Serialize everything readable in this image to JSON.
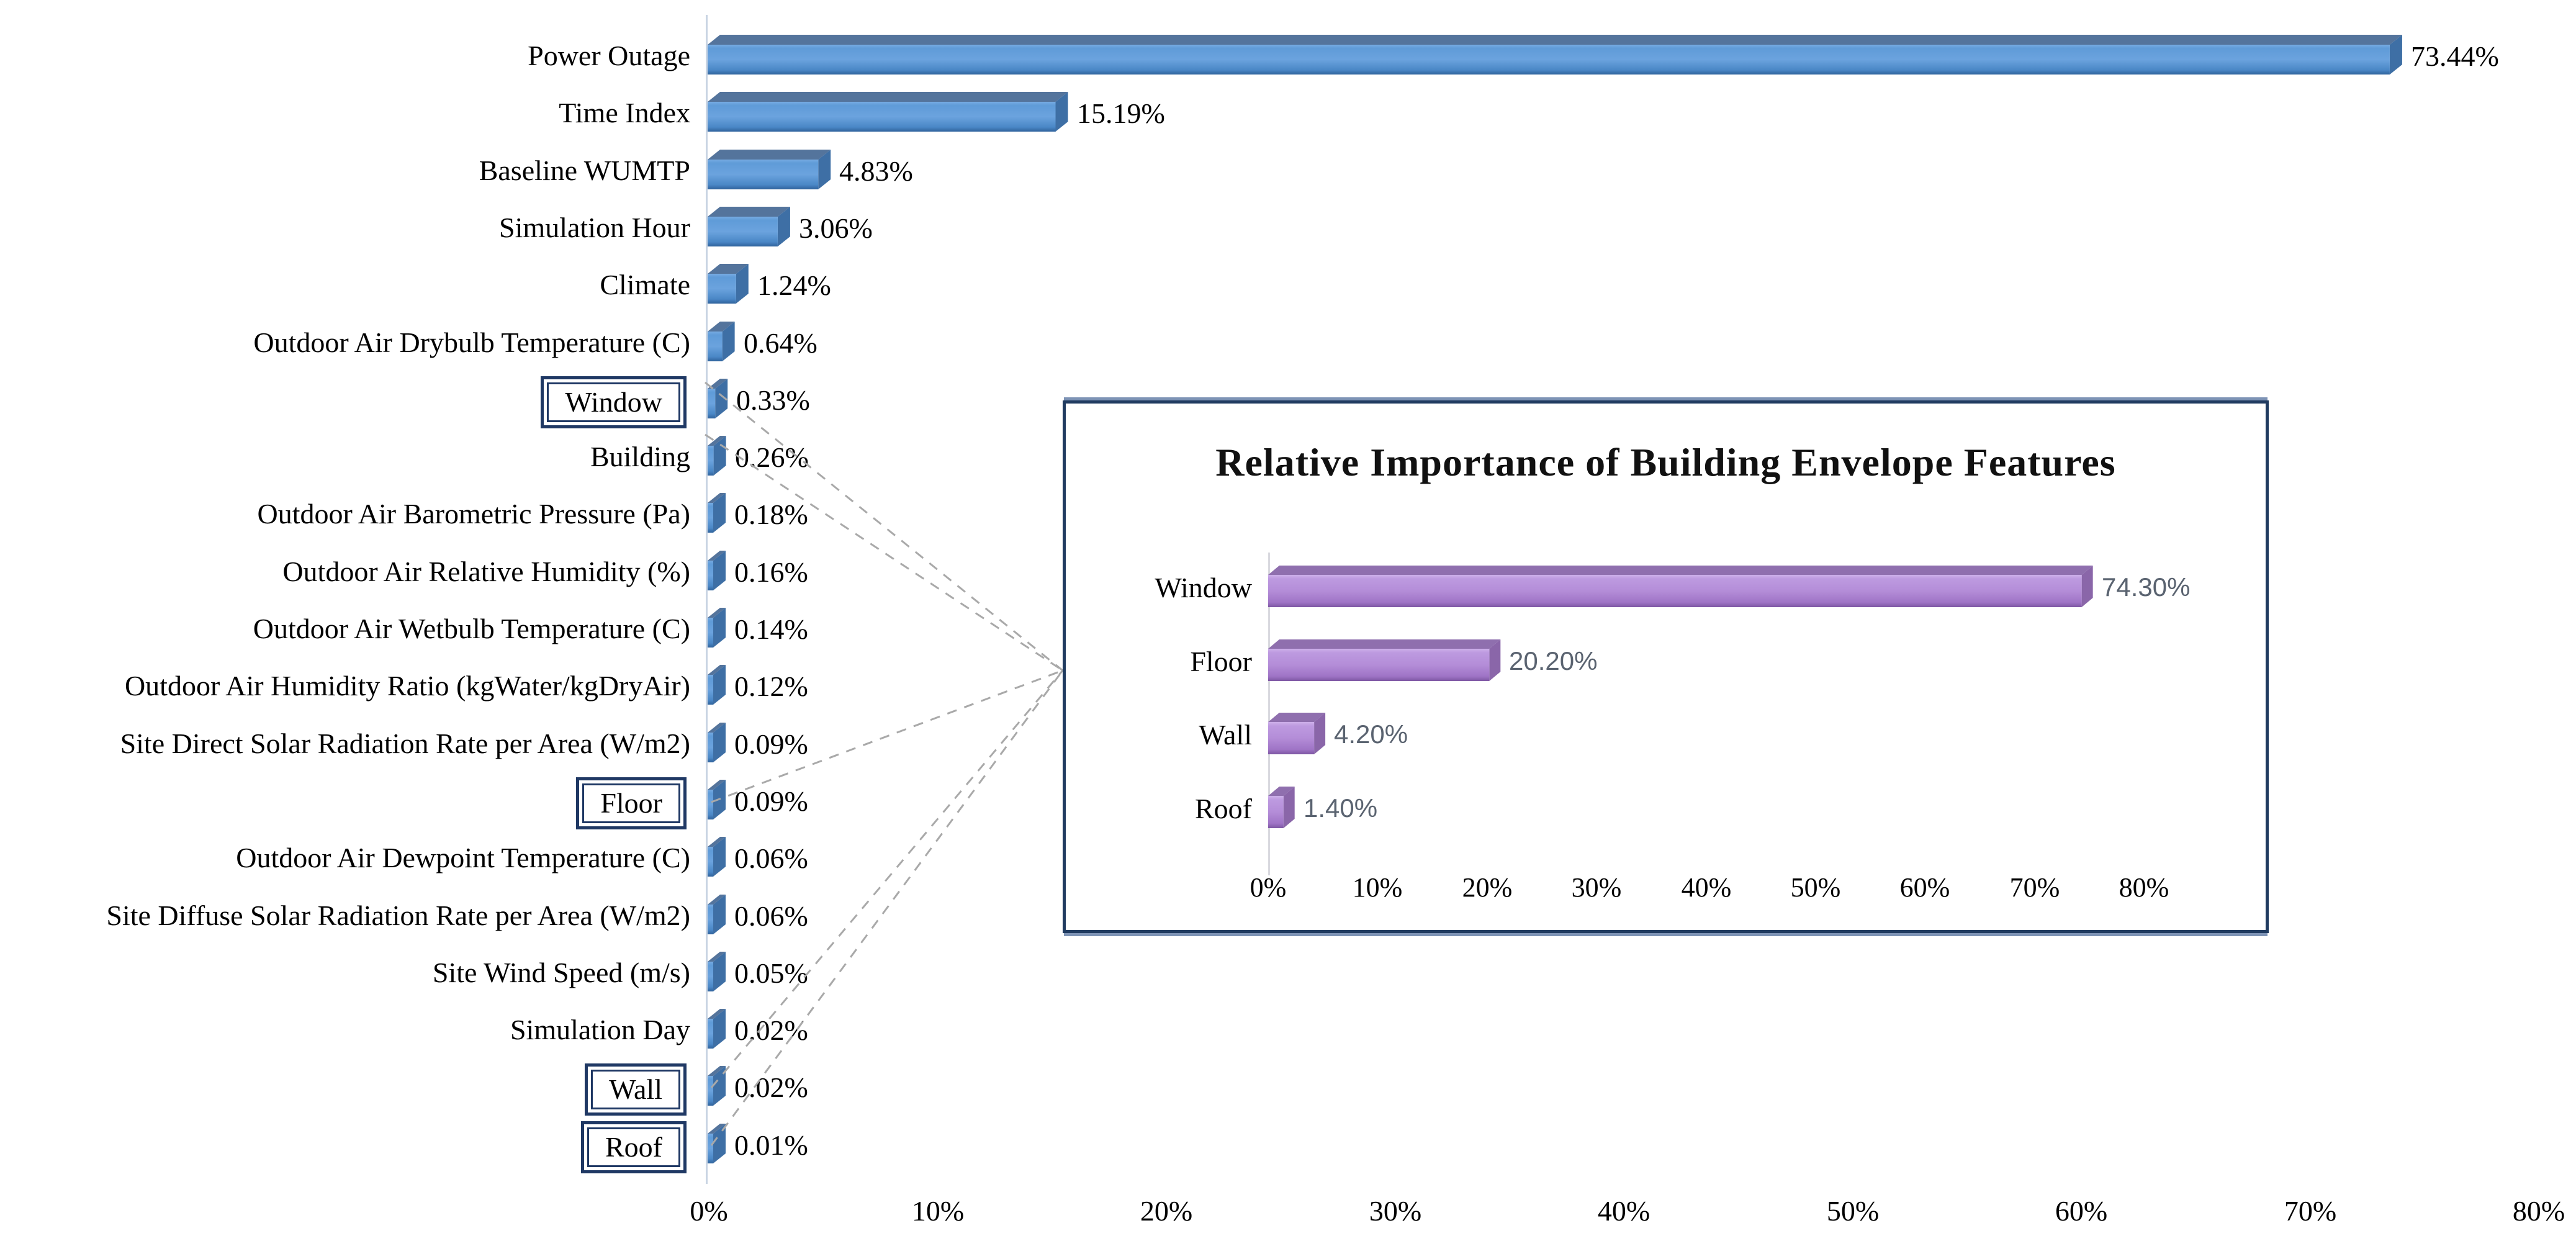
{
  "figure": {
    "background": "#ffffff",
    "callout": {
      "style": "dashed",
      "color": "#a9a9a9",
      "connects_boxed_labels": [
        "Window",
        "Floor",
        "Wall",
        "Roof"
      ],
      "target": "inset-left-edge"
    }
  },
  "chart_data": [
    {
      "id": "feature-importance",
      "type": "bar",
      "orientation": "horizontal",
      "title": "",
      "categories": [
        "Power Outage",
        "Time Index",
        "Baseline WUMTP",
        "Simulation Hour",
        "Climate",
        "Outdoor Air Drybulb Temperature (C)",
        "Window",
        "Building",
        "Outdoor Air Barometric Pressure (Pa)",
        "Outdoor Air Relative Humidity (%)",
        "Outdoor Air Wetbulb Temperature (C)",
        "Outdoor Air Humidity Ratio (kgWater/kgDryAir)",
        "Site Direct Solar Radiation Rate per Area (W/m2)",
        "Floor",
        "Outdoor Air Dewpoint Temperature (C)",
        "Site Diffuse Solar Radiation Rate per Area (W/m2)",
        "Site Wind Speed (m/s)",
        "Simulation Day",
        "Wall",
        "Roof"
      ],
      "values": [
        73.44,
        15.19,
        4.83,
        3.06,
        1.24,
        0.64,
        0.33,
        0.26,
        0.18,
        0.16,
        0.14,
        0.12,
        0.09,
        0.09,
        0.06,
        0.06,
        0.05,
        0.02,
        0.02,
        0.01
      ],
      "value_labels": [
        "73.44%",
        "15.19%",
        "4.83%",
        "3.06%",
        "1.24%",
        "0.64%",
        "0.33%",
        "0.26%",
        "0.18%",
        "0.16%",
        "0.14%",
        "0.12%",
        "0.09%",
        "0.09%",
        "0.06%",
        "0.06%",
        "0.05%",
        "0.02%",
        "0.02%",
        "0.01%"
      ],
      "boxed_categories": [
        "Window",
        "Floor",
        "Wall",
        "Roof"
      ],
      "x_ticks": [
        "0%",
        "10%",
        "20%",
        "30%",
        "40%",
        "50%",
        "60%",
        "70%",
        "80%"
      ],
      "xlim": [
        0,
        80
      ],
      "grid": false,
      "legend": "none",
      "bar_style": "3d",
      "bar_color": "#5b9bd5",
      "bar_top_color": "#54749c",
      "bar_side_color": "#3e6fa5",
      "box_border_color": "#1f3864",
      "axis_line_color": "#c9d4e3"
    },
    {
      "id": "envelope-importance",
      "type": "bar",
      "orientation": "horizontal",
      "title": "Relative Importance of Building Envelope Features",
      "categories": [
        "Window",
        "Floor",
        "Wall",
        "Roof"
      ],
      "values": [
        74.3,
        20.2,
        4.2,
        1.4
      ],
      "value_labels": [
        "74.30%",
        "20.20%",
        "4.20%",
        "1.40%"
      ],
      "x_ticks": [
        "0%",
        "10%",
        "20%",
        "30%",
        "40%",
        "50%",
        "60%",
        "70%",
        "80%"
      ],
      "xlim": [
        0,
        80
      ],
      "grid": false,
      "legend": "none",
      "bar_style": "3d",
      "bar_color": "#b38ad8",
      "bar_top_color": "#8f6fae",
      "bar_side_color": "#8a66a9",
      "value_label_color": "#5a6370",
      "frame_color": "#203b60",
      "axis_line_color": "#d9d9df"
    }
  ]
}
